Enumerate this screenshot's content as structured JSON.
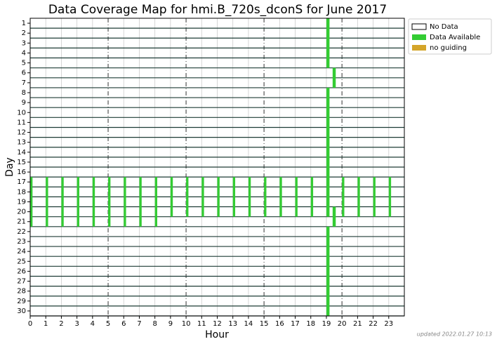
{
  "chart_data": {
    "type": "coverage",
    "title": "Data Coverage Map for hmi.B_720s_dconS for June 2017",
    "x_label": "Hour",
    "y_label": "Day",
    "footnote": "updated 2022.01.27 10:13",
    "xlim": [
      0,
      24
    ],
    "ylim": [
      30.5,
      0.5
    ],
    "xticks": [
      0,
      1,
      2,
      3,
      4,
      5,
      6,
      7,
      8,
      9,
      10,
      11,
      12,
      13,
      14,
      15,
      16,
      17,
      18,
      19,
      20,
      21,
      22,
      23
    ],
    "yticks": [
      1,
      2,
      3,
      4,
      5,
      6,
      7,
      8,
      9,
      10,
      11,
      12,
      13,
      14,
      15,
      16,
      17,
      18,
      19,
      20,
      21,
      22,
      23,
      24,
      25,
      26,
      27,
      28,
      29,
      30
    ],
    "major_every": 5,
    "series": [
      {
        "name": "No Data",
        "color": "#ffffff",
        "edge": "#000000",
        "segments": []
      },
      {
        "name": "Data Available",
        "color": "#33cc33",
        "segments": [
          [
            19,
            19.2,
            0.5,
            5.5
          ],
          [
            19.4,
            19.6,
            5.5,
            7.5
          ],
          [
            19,
            19.2,
            7.5,
            20.5
          ],
          [
            19.4,
            19.6,
            19.5,
            21.5
          ],
          [
            19,
            19.2,
            21.5,
            30.5
          ],
          [
            0,
            0.15,
            16.5,
            21.5
          ],
          [
            1,
            1.15,
            16.5,
            21.5
          ],
          [
            2,
            2.15,
            16.5,
            21.5
          ],
          [
            3,
            3.15,
            16.5,
            21.5
          ],
          [
            4,
            4.15,
            16.5,
            21.5
          ],
          [
            5,
            5.15,
            16.5,
            21.5
          ],
          [
            6,
            6.15,
            16.5,
            21.5
          ],
          [
            7,
            7.15,
            16.5,
            21.5
          ],
          [
            8,
            8.15,
            16.5,
            21.5
          ],
          [
            9,
            9.15,
            16.5,
            20.5
          ],
          [
            10,
            10.15,
            16.5,
            20.5
          ],
          [
            11,
            11.15,
            16.5,
            20.5
          ],
          [
            12,
            12.15,
            16.5,
            20.5
          ],
          [
            13,
            13.15,
            16.5,
            20.5
          ],
          [
            14,
            14.15,
            16.5,
            20.5
          ],
          [
            15,
            15.15,
            16.5,
            20.5
          ],
          [
            16,
            16.15,
            16.5,
            20.5
          ],
          [
            17,
            17.15,
            16.5,
            20.5
          ],
          [
            18,
            18.15,
            16.5,
            20.5
          ],
          [
            20,
            20.15,
            16.5,
            20.5
          ],
          [
            21,
            21.15,
            16.5,
            20.5
          ],
          [
            22,
            22.15,
            16.5,
            20.5
          ],
          [
            23,
            23.15,
            16.5,
            20.5
          ]
        ]
      },
      {
        "name": "no guiding",
        "color": "#d4a52a",
        "segments": []
      }
    ]
  }
}
